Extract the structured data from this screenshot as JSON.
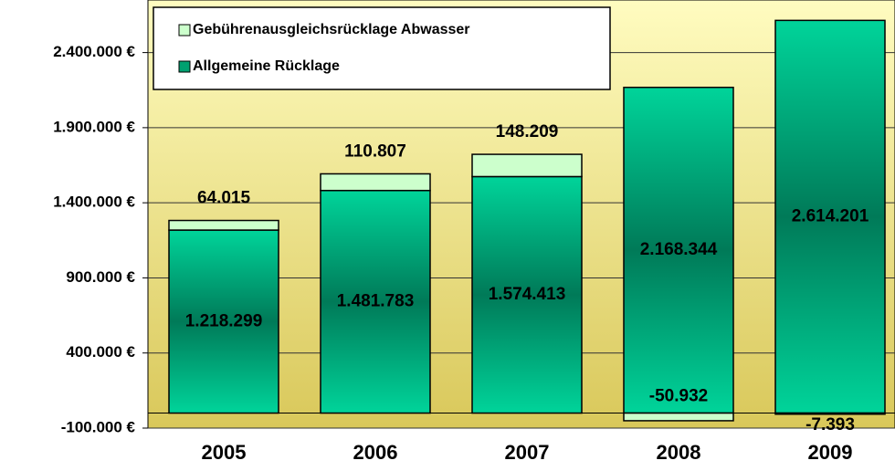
{
  "chart_data": {
    "type": "bar",
    "stacked": true,
    "categories": [
      "2005",
      "2006",
      "2007",
      "2008",
      "2009"
    ],
    "series": [
      {
        "name": "Allgemeine Rücklage",
        "color": "#00b07a",
        "values": [
          1218299,
          1481783,
          1574413,
          2168344,
          2614201
        ],
        "value_labels": [
          "1.218.299",
          "1.481.783",
          "1.574.413",
          "2.168.344",
          "2.614.201"
        ]
      },
      {
        "name": "Gebührenausgleichsrücklage Abwasser",
        "color": "#ccffcc",
        "values": [
          64015,
          110807,
          148209,
          -50932,
          -7393
        ],
        "value_labels": [
          "64.015",
          "110.807",
          "148.209",
          "-50.932",
          "-7.393"
        ]
      }
    ],
    "legend_order": [
      1,
      0
    ],
    "ylim": [
      -100000,
      2750000
    ],
    "yticks": [
      {
        "value": -100000,
        "label": "-100.000 €"
      },
      {
        "value": 400000,
        "label": "400.000 €"
      },
      {
        "value": 900000,
        "label": "900.000 €"
      },
      {
        "value": 1400000,
        "label": "1.400.000 €"
      },
      {
        "value": 1900000,
        "label": "1.900.000 €"
      },
      {
        "value": 2400000,
        "label": "2.400.000 €"
      }
    ],
    "grid": true
  }
}
